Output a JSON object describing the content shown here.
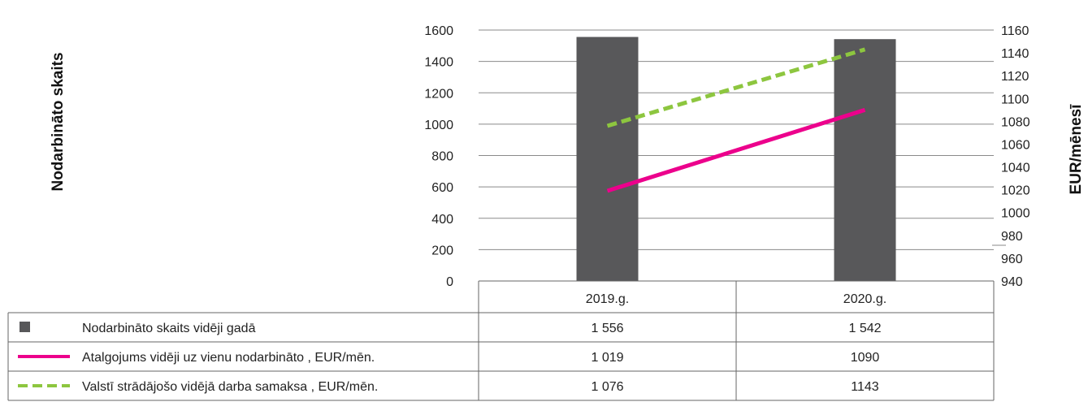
{
  "chart_data": {
    "type": "bar",
    "categories": [
      "2019.g.",
      "2020.g."
    ],
    "y_left": {
      "label": "Nodarbināto skaits",
      "ticks": [
        "0",
        "200",
        "400",
        "600",
        "800",
        "1000",
        "1200",
        "1400",
        "1600"
      ],
      "range": [
        0,
        1600
      ]
    },
    "y_right": {
      "label": "EUR/mēnesī",
      "ticks": [
        "940",
        "960",
        "980",
        "1000",
        "1020",
        "1040",
        "1060",
        "1080",
        "1100",
        "1120",
        "1140",
        "1160"
      ],
      "range": [
        940,
        1160
      ]
    },
    "series": [
      {
        "name": "Nodarbināto skaits vidēji gadā",
        "type": "bar",
        "axis": "left",
        "values": [
          1556,
          1542
        ],
        "labels": [
          "1 556",
          "1 542"
        ],
        "color": "#58585a",
        "legend_symbol": "square"
      },
      {
        "name": "Atalgojums vidēji uz vienu nodarbināto , EUR/mēn.",
        "type": "line",
        "axis": "right",
        "values": [
          1019,
          1090
        ],
        "labels": [
          "1 019",
          "1090"
        ],
        "color": "#ec008c",
        "dash": "solid",
        "legend_symbol": "line"
      },
      {
        "name": "Valstī strādājošo vidējā darba samaksa , EUR/mēn.",
        "type": "line",
        "axis": "right",
        "values": [
          1076,
          1143
        ],
        "labels": [
          "1 076",
          "1143"
        ],
        "color": "#8dc63f",
        "dash": "dashed",
        "legend_symbol": "dashed-line"
      }
    ],
    "grid": true,
    "legend": "data-table-below"
  }
}
